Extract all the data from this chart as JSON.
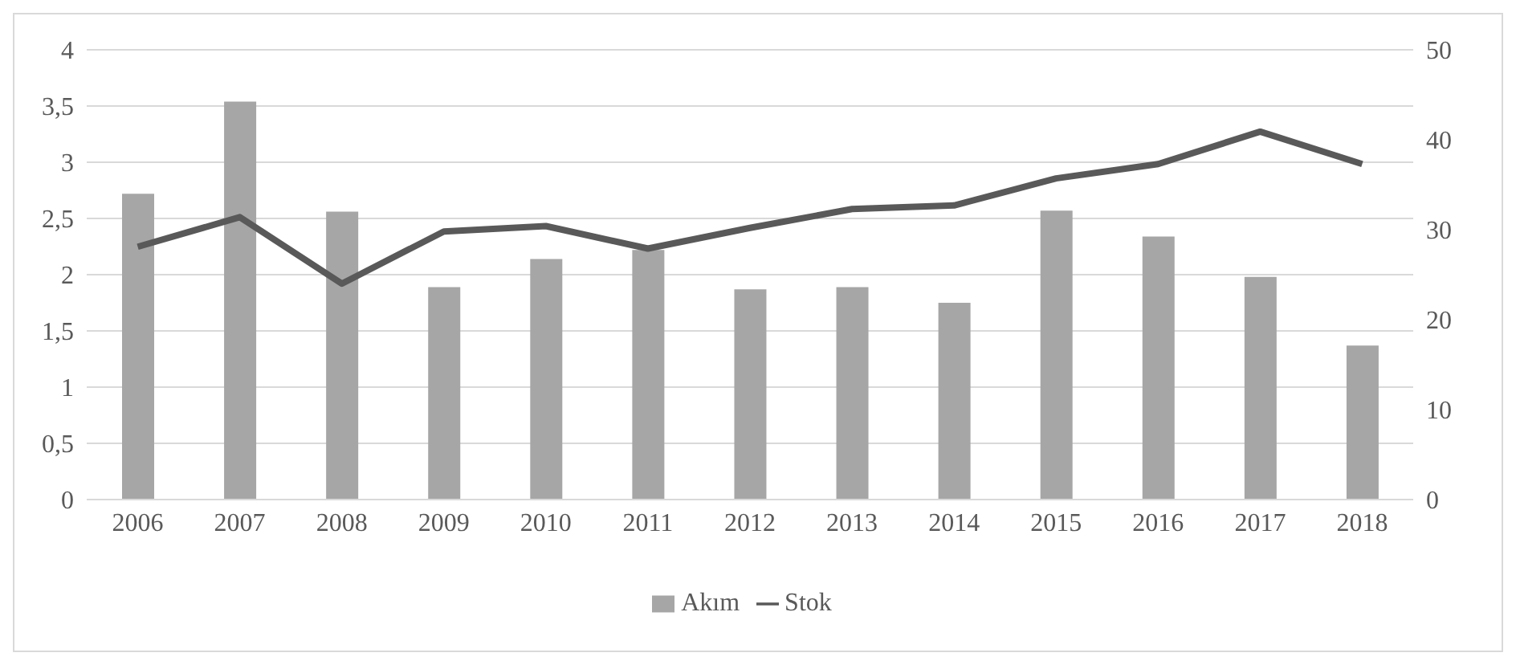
{
  "chart_data": {
    "type": "bar",
    "categories": [
      "2006",
      "2007",
      "2008",
      "2009",
      "2010",
      "2011",
      "2012",
      "2013",
      "2014",
      "2015",
      "2016",
      "2017",
      "2018"
    ],
    "series": [
      {
        "name": "Akım",
        "color": "#a6a6a6",
        "values": [
          2.72,
          3.54,
          2.56,
          1.89,
          2.14,
          2.22,
          1.87,
          1.89,
          1.75,
          2.57,
          2.34,
          1.98,
          1.37
        ]
      },
      {
        "name": "Stok",
        "type": "line",
        "axis": "y2",
        "color": "#595959",
        "values": [
          28.1,
          31.4,
          24,
          29.8,
          30.4,
          27.9,
          30.2,
          32.3,
          32.7,
          35.7,
          37.3,
          40.9,
          37.3
        ]
      }
    ],
    "ylim": [
      0,
      4
    ],
    "yticks": [
      0,
      {
        "value": 0.5,
        "label": "0,5"
      },
      1,
      {
        "value": 1.5,
        "label": "1,5"
      },
      2,
      {
        "value": 2.5,
        "label": "2,5"
      },
      3,
      {
        "value": 3.5,
        "label": "3,5"
      },
      4
    ],
    "y2lim": [
      0,
      50
    ],
    "y2ticks": [
      0,
      10,
      20,
      30,
      40,
      50
    ],
    "grid": "y",
    "legend": "bottom",
    "marker": "none"
  }
}
